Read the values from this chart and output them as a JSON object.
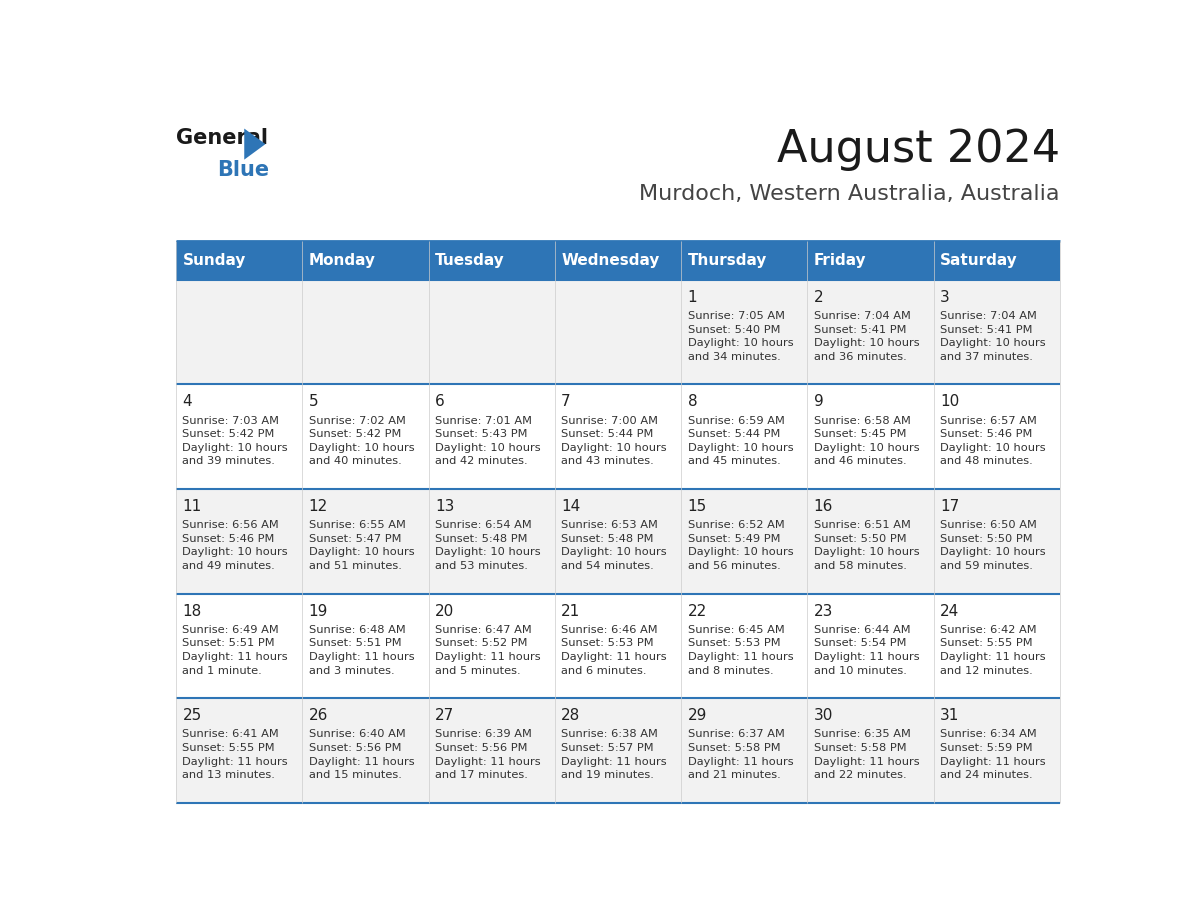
{
  "title": "August 2024",
  "subtitle": "Murdoch, Western Australia, Australia",
  "header_bg": "#2E75B6",
  "header_text": "#FFFFFF",
  "separator_color": "#2E75B6",
  "cell_line_color": "#CCCCCC",
  "day_headers": [
    "Sunday",
    "Monday",
    "Tuesday",
    "Wednesday",
    "Thursday",
    "Friday",
    "Saturday"
  ],
  "calendar_data": [
    [
      "",
      "",
      "",
      "",
      "1\nSunrise: 7:05 AM\nSunset: 5:40 PM\nDaylight: 10 hours\nand 34 minutes.",
      "2\nSunrise: 7:04 AM\nSunset: 5:41 PM\nDaylight: 10 hours\nand 36 minutes.",
      "3\nSunrise: 7:04 AM\nSunset: 5:41 PM\nDaylight: 10 hours\nand 37 minutes."
    ],
    [
      "4\nSunrise: 7:03 AM\nSunset: 5:42 PM\nDaylight: 10 hours\nand 39 minutes.",
      "5\nSunrise: 7:02 AM\nSunset: 5:42 PM\nDaylight: 10 hours\nand 40 minutes.",
      "6\nSunrise: 7:01 AM\nSunset: 5:43 PM\nDaylight: 10 hours\nand 42 minutes.",
      "7\nSunrise: 7:00 AM\nSunset: 5:44 PM\nDaylight: 10 hours\nand 43 minutes.",
      "8\nSunrise: 6:59 AM\nSunset: 5:44 PM\nDaylight: 10 hours\nand 45 minutes.",
      "9\nSunrise: 6:58 AM\nSunset: 5:45 PM\nDaylight: 10 hours\nand 46 minutes.",
      "10\nSunrise: 6:57 AM\nSunset: 5:46 PM\nDaylight: 10 hours\nand 48 minutes."
    ],
    [
      "11\nSunrise: 6:56 AM\nSunset: 5:46 PM\nDaylight: 10 hours\nand 49 minutes.",
      "12\nSunrise: 6:55 AM\nSunset: 5:47 PM\nDaylight: 10 hours\nand 51 minutes.",
      "13\nSunrise: 6:54 AM\nSunset: 5:48 PM\nDaylight: 10 hours\nand 53 minutes.",
      "14\nSunrise: 6:53 AM\nSunset: 5:48 PM\nDaylight: 10 hours\nand 54 minutes.",
      "15\nSunrise: 6:52 AM\nSunset: 5:49 PM\nDaylight: 10 hours\nand 56 minutes.",
      "16\nSunrise: 6:51 AM\nSunset: 5:50 PM\nDaylight: 10 hours\nand 58 minutes.",
      "17\nSunrise: 6:50 AM\nSunset: 5:50 PM\nDaylight: 10 hours\nand 59 minutes."
    ],
    [
      "18\nSunrise: 6:49 AM\nSunset: 5:51 PM\nDaylight: 11 hours\nand 1 minute.",
      "19\nSunrise: 6:48 AM\nSunset: 5:51 PM\nDaylight: 11 hours\nand 3 minutes.",
      "20\nSunrise: 6:47 AM\nSunset: 5:52 PM\nDaylight: 11 hours\nand 5 minutes.",
      "21\nSunrise: 6:46 AM\nSunset: 5:53 PM\nDaylight: 11 hours\nand 6 minutes.",
      "22\nSunrise: 6:45 AM\nSunset: 5:53 PM\nDaylight: 11 hours\nand 8 minutes.",
      "23\nSunrise: 6:44 AM\nSunset: 5:54 PM\nDaylight: 11 hours\nand 10 minutes.",
      "24\nSunrise: 6:42 AM\nSunset: 5:55 PM\nDaylight: 11 hours\nand 12 minutes."
    ],
    [
      "25\nSunrise: 6:41 AM\nSunset: 5:55 PM\nDaylight: 11 hours\nand 13 minutes.",
      "26\nSunrise: 6:40 AM\nSunset: 5:56 PM\nDaylight: 11 hours\nand 15 minutes.",
      "27\nSunrise: 6:39 AM\nSunset: 5:56 PM\nDaylight: 11 hours\nand 17 minutes.",
      "28\nSunrise: 6:38 AM\nSunset: 5:57 PM\nDaylight: 11 hours\nand 19 minutes.",
      "29\nSunrise: 6:37 AM\nSunset: 5:58 PM\nDaylight: 11 hours\nand 21 minutes.",
      "30\nSunrise: 6:35 AM\nSunset: 5:58 PM\nDaylight: 11 hours\nand 22 minutes.",
      "31\nSunrise: 6:34 AM\nSunset: 5:59 PM\nDaylight: 11 hours\nand 24 minutes."
    ]
  ],
  "logo_triangle_color": "#2E75B6",
  "title_fontsize": 32,
  "subtitle_fontsize": 16,
  "header_fontsize": 11,
  "day_num_fontsize": 11,
  "cell_text_fontsize": 8.2
}
